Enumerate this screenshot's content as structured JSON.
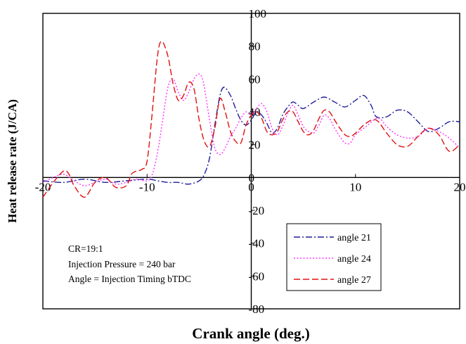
{
  "chart_data": {
    "type": "line",
    "xlabel": "Crank angle (deg.)",
    "ylabel": "Heat release rate (J/CA)",
    "xlim": [
      -20,
      20
    ],
    "ylim": [
      -80,
      100
    ],
    "x_ticks": [
      -20,
      -10,
      0,
      10,
      20
    ],
    "y_ticks": [
      -80,
      -60,
      -40,
      -20,
      0,
      20,
      40,
      60,
      80,
      100
    ],
    "x_tick_labels": [
      "-20",
      "-10",
      "0",
      "10",
      "20"
    ],
    "y_tick_labels": [
      "-80",
      "-60",
      "-40",
      "-20",
      "0",
      "20",
      "40",
      "60",
      "80",
      "100"
    ],
    "grid": false,
    "legend_position": "bottom-right",
    "annotations": [
      "CR=19:1",
      "Injection Pressure = 240 bar",
      "Angle = Injection Timing bTDC"
    ],
    "series": [
      {
        "name": "angle 21",
        "color": "#1f1f9a",
        "dash": "dash-dot",
        "points": [
          [
            -20,
            -2
          ],
          [
            -18,
            -3
          ],
          [
            -16,
            -1
          ],
          [
            -14,
            -3
          ],
          [
            -12,
            -2
          ],
          [
            -10,
            -1
          ],
          [
            -9,
            -2
          ],
          [
            -8,
            -3
          ],
          [
            -7,
            -3
          ],
          [
            -6,
            -4
          ],
          [
            -5,
            -2
          ],
          [
            -4.5,
            2
          ],
          [
            -4,
            12
          ],
          [
            -3.5,
            32
          ],
          [
            -3,
            50
          ],
          [
            -2.6,
            55
          ],
          [
            -2,
            50
          ],
          [
            -1.5,
            42
          ],
          [
            -1,
            35
          ],
          [
            -0.5,
            32
          ],
          [
            0,
            35
          ],
          [
            0.5,
            40
          ],
          [
            1,
            38
          ],
          [
            1.5,
            33
          ],
          [
            2,
            27
          ],
          [
            2.5,
            30
          ],
          [
            3,
            38
          ],
          [
            3.5,
            43
          ],
          [
            4,
            46
          ],
          [
            4.5,
            44
          ],
          [
            5,
            42
          ],
          [
            6,
            46
          ],
          [
            7,
            49
          ],
          [
            8,
            46
          ],
          [
            9,
            43
          ],
          [
            10,
            47
          ],
          [
            10.8,
            50
          ],
          [
            11.5,
            44
          ],
          [
            12,
            37
          ],
          [
            13,
            37
          ],
          [
            14,
            41
          ],
          [
            15,
            40
          ],
          [
            16,
            34
          ],
          [
            17,
            28
          ],
          [
            18,
            30
          ],
          [
            19,
            34
          ],
          [
            20,
            34
          ]
        ]
      },
      {
        "name": "angle 24",
        "color": "#ff33ff",
        "dash": "dotted",
        "points": [
          [
            -20,
            -3
          ],
          [
            -19,
            0
          ],
          [
            -18,
            2
          ],
          [
            -17,
            -2
          ],
          [
            -16,
            -5
          ],
          [
            -15,
            -3
          ],
          [
            -14,
            -1
          ],
          [
            -13,
            -4
          ],
          [
            -12,
            -3
          ],
          [
            -11,
            -1
          ],
          [
            -10,
            -2
          ],
          [
            -9.5,
            2
          ],
          [
            -9,
            15
          ],
          [
            -8.5,
            35
          ],
          [
            -8,
            55
          ],
          [
            -7.5,
            60
          ],
          [
            -7,
            52
          ],
          [
            -6.5,
            47
          ],
          [
            -6,
            52
          ],
          [
            -5.5,
            60
          ],
          [
            -5,
            63
          ],
          [
            -4.6,
            58
          ],
          [
            -4,
            35
          ],
          [
            -3.5,
            18
          ],
          [
            -3,
            14
          ],
          [
            -2.5,
            18
          ],
          [
            -2,
            25
          ],
          [
            -1.5,
            30
          ],
          [
            -1,
            36
          ],
          [
            -0.5,
            40
          ],
          [
            0,
            38
          ],
          [
            0.5,
            42
          ],
          [
            1,
            45
          ],
          [
            1.5,
            40
          ],
          [
            2,
            30
          ],
          [
            2.5,
            26
          ],
          [
            3,
            31
          ],
          [
            3.5,
            39
          ],
          [
            4,
            44
          ],
          [
            4.5,
            38
          ],
          [
            5,
            31
          ],
          [
            5.5,
            28
          ],
          [
            6,
            27
          ],
          [
            6.5,
            32
          ],
          [
            7,
            38
          ],
          [
            7.5,
            36
          ],
          [
            8,
            30
          ],
          [
            8.5,
            25
          ],
          [
            9,
            21
          ],
          [
            9.5,
            21
          ],
          [
            10,
            26
          ],
          [
            11,
            31
          ],
          [
            12,
            36
          ],
          [
            12.5,
            35
          ],
          [
            13,
            31
          ],
          [
            14,
            26
          ],
          [
            15,
            24
          ],
          [
            16,
            25
          ],
          [
            17,
            30
          ],
          [
            18,
            28
          ],
          [
            19,
            24
          ],
          [
            20,
            18
          ]
        ]
      },
      {
        "name": "angle 27",
        "color": "#e01010",
        "dash": "dashed",
        "points": [
          [
            -20,
            -12
          ],
          [
            -19,
            -3
          ],
          [
            -18,
            4
          ],
          [
            -17.5,
            2
          ],
          [
            -17,
            -5
          ],
          [
            -16,
            -12
          ],
          [
            -15,
            -3
          ],
          [
            -14,
            0
          ],
          [
            -13,
            -6
          ],
          [
            -12,
            -5
          ],
          [
            -11.5,
            2
          ],
          [
            -11,
            4
          ],
          [
            -10.5,
            5
          ],
          [
            -10,
            10
          ],
          [
            -9.5,
            40
          ],
          [
            -9,
            74
          ],
          [
            -8.6,
            83
          ],
          [
            -8,
            74
          ],
          [
            -7.5,
            57
          ],
          [
            -7,
            47
          ],
          [
            -6.5,
            50
          ],
          [
            -6,
            58
          ],
          [
            -5.5,
            54
          ],
          [
            -5,
            35
          ],
          [
            -4.5,
            22
          ],
          [
            -4,
            19
          ],
          [
            -3.5,
            30
          ],
          [
            -3,
            48
          ],
          [
            -2.5,
            40
          ],
          [
            -2,
            28
          ],
          [
            -1.5,
            22
          ],
          [
            -1,
            21
          ],
          [
            -0.5,
            32
          ],
          [
            0,
            38
          ],
          [
            0.5,
            40
          ],
          [
            1,
            36
          ],
          [
            1.5,
            28
          ],
          [
            2,
            26
          ],
          [
            2.5,
            28
          ],
          [
            3,
            35
          ],
          [
            3.5,
            40
          ],
          [
            4,
            40
          ],
          [
            4.5,
            34
          ],
          [
            5,
            28
          ],
          [
            5.5,
            26
          ],
          [
            6,
            29
          ],
          [
            6.5,
            36
          ],
          [
            7,
            41
          ],
          [
            7.5,
            40
          ],
          [
            8,
            35
          ],
          [
            8.5,
            30
          ],
          [
            9,
            26
          ],
          [
            9.5,
            25
          ],
          [
            10,
            27
          ],
          [
            11,
            33
          ],
          [
            12,
            35
          ],
          [
            13,
            27
          ],
          [
            14,
            20
          ],
          [
            15,
            19
          ],
          [
            16,
            25
          ],
          [
            17,
            30
          ],
          [
            18,
            26
          ],
          [
            19,
            16
          ],
          [
            20,
            20
          ]
        ]
      }
    ]
  }
}
